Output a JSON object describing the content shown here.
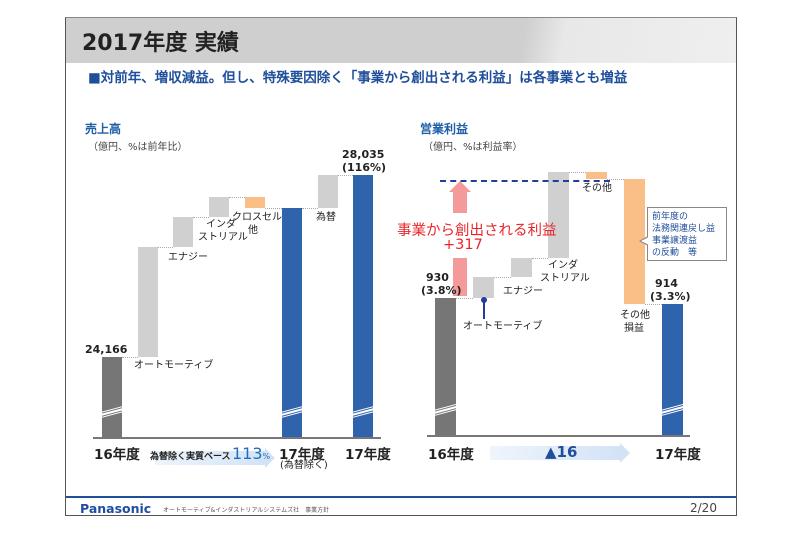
{
  "header": {
    "title": "2017年度 実績",
    "subtitle": "■対前年、増収減益。但し、特殊要因除く「事業から創出される利益」は各事業とも増益"
  },
  "colors": {
    "base_bar": "#767676",
    "result_bar": "#2f63ab",
    "increase_bar": "#d0d0d0",
    "decrease_bar": "#f9bf86",
    "accent_red": "#e8262a",
    "accent_blue": "#1f4e9a"
  },
  "chart_data": [
    {
      "type": "waterfall",
      "title": "売上高",
      "subtitle": "（億円、%は前年比）",
      "categories": [
        "16年度",
        "オートモーティブ",
        "エナジー",
        "インダストリアル",
        "クロスセル他",
        "17年度（為替除く）",
        "為替",
        "17年度"
      ],
      "values": [
        24166,
        2340,
        638,
        425,
        -234,
        27335,
        700,
        28035
      ],
      "kinds": [
        "total",
        "delta",
        "delta",
        "delta",
        "delta",
        "total",
        "delta",
        "total"
      ],
      "labels": {
        "start": "24,166",
        "end": "28,035",
        "end_pct": "(116%)",
        "y0": "16年度",
        "y_excl": "17年度",
        "y_excl_sub": "(為替除く)",
        "y1": "17年度",
        "cat_auto": "オートモーティブ",
        "cat_energy": "エナジー",
        "cat_ind1": "インダ",
        "cat_ind2": "ストリアル",
        "cat_cross1": "クロスセル",
        "cat_cross2": "他",
        "cat_fx": "為替"
      },
      "arrow": {
        "text": "為替除く実質ベース",
        "value": "113",
        "unit": "%"
      },
      "axis_break": true
    },
    {
      "type": "waterfall",
      "title": "営業利益",
      "subtitle": "（億円、%は利益率）",
      "categories": [
        "16年度",
        "オートモーティブ",
        "エナジー",
        "インダストリアル",
        "その他",
        "その他損益",
        "17年度"
      ],
      "values": [
        930,
        56,
        51,
        229,
        -19,
        -333,
        914
      ],
      "kinds": [
        "total",
        "delta",
        "delta",
        "delta",
        "delta",
        "delta",
        "total"
      ],
      "labels": {
        "start": "930",
        "start_pct": "(3.8%)",
        "end": "914",
        "end_pct": "(3.3%)",
        "y0": "16年度",
        "y1": "17年度",
        "cat_auto": "オートモーティブ",
        "cat_energy": "エナジー",
        "cat_ind1": "インダ",
        "cat_ind2": "ストリアル",
        "cat_other": "その他",
        "cat_pl1": "その他",
        "cat_pl2": "損益"
      },
      "annotation": {
        "text": "事業から創出される利益",
        "value": "+317"
      },
      "callout": [
        "前年度の",
        "法務関連戻し益",
        "事業譲渡益",
        "の反動　等"
      ],
      "arrow": {
        "value": "▲16"
      },
      "axis_break": true
    }
  ],
  "footer": {
    "logo": "Panasonic",
    "text": "オートモーティブ&インダストリアルシステムズ社　事業方針",
    "page": "2/20"
  }
}
